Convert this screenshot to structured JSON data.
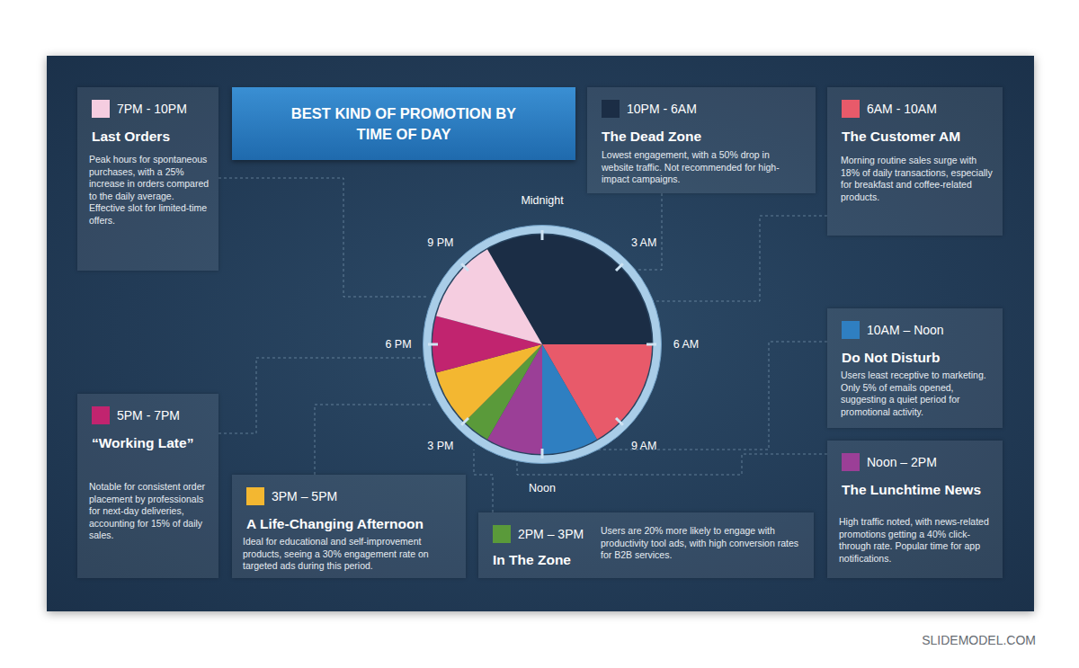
{
  "chart_data": {
    "type": "pie",
    "title": "BEST KIND OF PROMOTION BY TIME OF DAY",
    "categories": [
      "10PM - 6AM",
      "6AM - 10AM",
      "10AM – Noon",
      "Noon – 2PM",
      "2PM – 3PM",
      "3PM – 5PM",
      "5PM - 7PM",
      "7PM - 10PM"
    ],
    "values": [
      8,
      4,
      2,
      2,
      1,
      2,
      2,
      3
    ],
    "colors": [
      "#1b2d45",
      "#e85a6a",
      "#2f7fc1",
      "#9b3f97",
      "#5a9a3a",
      "#f3b731",
      "#c1246f",
      "#f5cde0"
    ],
    "xlim": [
      0,
      24
    ],
    "xticks": [
      {
        "value": 0,
        "label": "Midnight"
      },
      {
        "value": 3,
        "label": "3 AM"
      },
      {
        "value": 6,
        "label": "6 AM"
      },
      {
        "value": 9,
        "label": "9 AM"
      },
      {
        "value": 12,
        "label": "Noon"
      },
      {
        "value": 15,
        "label": "3 PM"
      },
      {
        "value": 18,
        "label": "6 PM"
      },
      {
        "value": 21,
        "label": "9 PM"
      }
    ],
    "annotations": [
      {
        "heading": "The Dead Zone",
        "text": "Lowest engagement, with a 50% drop in website traffic. Not recommended for high-impact campaigns."
      },
      {
        "heading": "The Customer AM",
        "text": "Morning routine sales surge with 18% of daily transactions, especially for breakfast and coffee-related products."
      },
      {
        "heading": "Do Not Disturb",
        "text": "Users least receptive to marketing. Only 5% of emails opened, suggesting a quiet period for promotional activity."
      },
      {
        "heading": "The Lunchtime News",
        "text": "High traffic noted, with news-related promotions getting a 40% click-through rate. Popular time for app notifications."
      },
      {
        "heading": "In The Zone",
        "text": "Users are 20% more likely to engage with productivity tool ads, with high conversion rates for B2B services."
      },
      {
        "heading": "A Life-Changing Afternoon",
        "text": "Ideal for educational and self-improvement products, seeing a 30% engagement rate on targeted ads during this period."
      },
      {
        "heading": "“Working Late”",
        "text": "Notable for consistent order placement by professionals for next-day deliveries, accounting for 15% of daily sales."
      },
      {
        "heading": "Last Orders",
        "text": "Peak hours for spontaneous purchases, with a 25% increase in orders compared to the daily average. Effective slot for limited-time offers."
      }
    ]
  },
  "footer": "SLIDEMODEL.COM"
}
